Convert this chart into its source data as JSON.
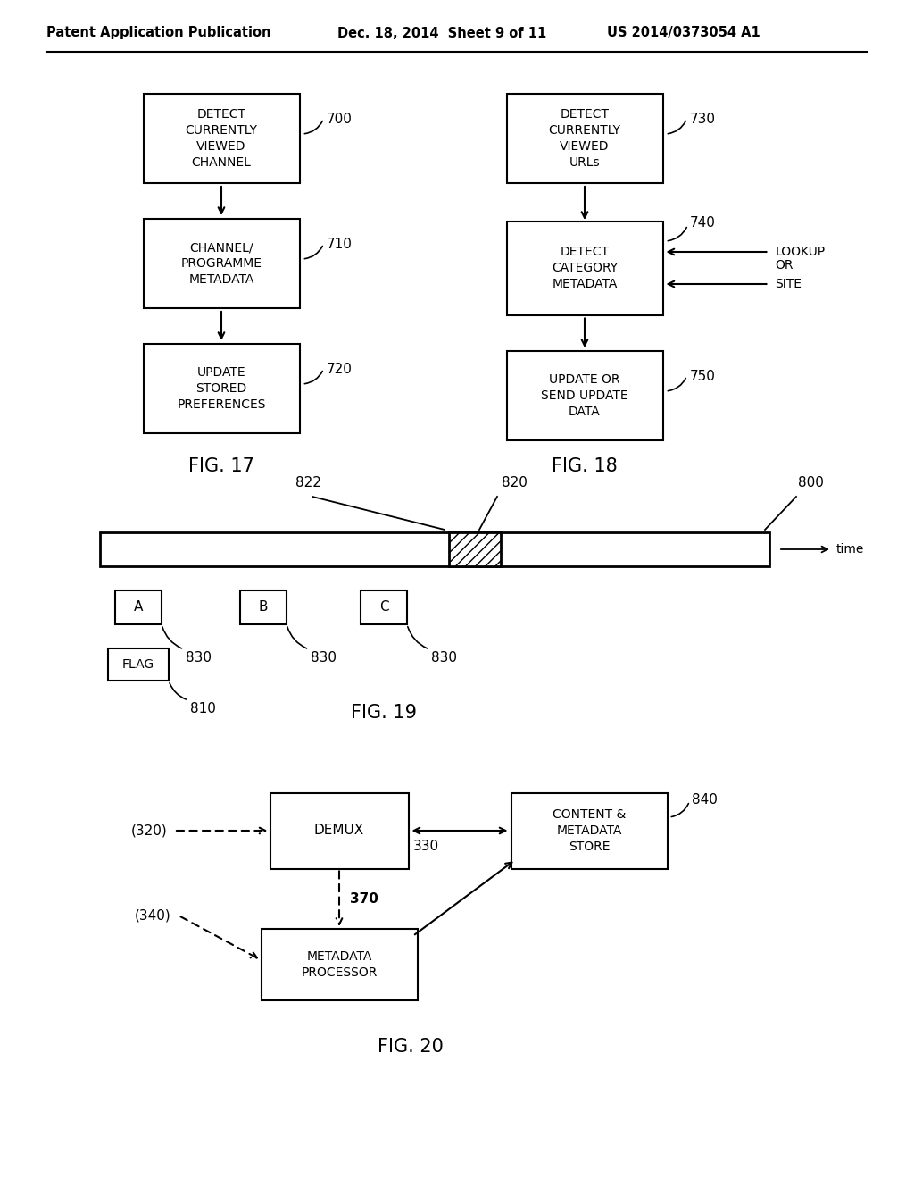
{
  "header_left": "Patent Application Publication",
  "header_mid": "Dec. 18, 2014  Sheet 9 of 11",
  "header_right": "US 2014/0373054 A1",
  "bg_color": "#ffffff"
}
